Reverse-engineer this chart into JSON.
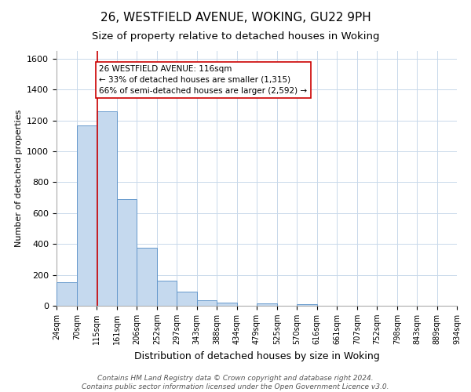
{
  "title": "26, WESTFIELD AVENUE, WOKING, GU22 9PH",
  "subtitle": "Size of property relative to detached houses in Woking",
  "xlabel": "Distribution of detached houses by size in Woking",
  "ylabel": "Number of detached properties",
  "bar_edges": [
    24,
    70,
    115,
    161,
    206,
    252,
    297,
    343,
    388,
    434,
    479,
    525,
    570,
    616,
    661,
    707,
    752,
    798,
    843,
    889,
    934
  ],
  "bar_heights": [
    152,
    1170,
    1258,
    688,
    375,
    161,
    91,
    36,
    21,
    0,
    14,
    0,
    10,
    0,
    0,
    0,
    0,
    0,
    0,
    0
  ],
  "bar_color": "#c5d9ee",
  "bar_edge_color": "#6699cc",
  "property_size": 116,
  "property_line_color": "#cc0000",
  "annotation_line1": "26 WESTFIELD AVENUE: 116sqm",
  "annotation_line2": "← 33% of detached houses are smaller (1,315)",
  "annotation_line3": "66% of semi-detached houses are larger (2,592) →",
  "annotation_box_color": "#ffffff",
  "annotation_box_edge_color": "#cc0000",
  "ylim": [
    0,
    1650
  ],
  "yticks": [
    0,
    200,
    400,
    600,
    800,
    1000,
    1200,
    1400,
    1600
  ],
  "tick_labels": [
    "24sqm",
    "70sqm",
    "115sqm",
    "161sqm",
    "206sqm",
    "252sqm",
    "297sqm",
    "343sqm",
    "388sqm",
    "434sqm",
    "479sqm",
    "525sqm",
    "570sqm",
    "616sqm",
    "661sqm",
    "707sqm",
    "752sqm",
    "798sqm",
    "843sqm",
    "889sqm",
    "934sqm"
  ],
  "footer_line1": "Contains HM Land Registry data © Crown copyright and database right 2024.",
  "footer_line2": "Contains public sector information licensed under the Open Government Licence v3.0.",
  "background_color": "#ffffff",
  "grid_color": "#c8d8ea",
  "title_fontsize": 11,
  "subtitle_fontsize": 9.5,
  "xlabel_fontsize": 9,
  "ylabel_fontsize": 8,
  "tick_fontsize": 7,
  "ytick_fontsize": 8,
  "footer_fontsize": 6.5,
  "annot_fontsize": 7.5
}
